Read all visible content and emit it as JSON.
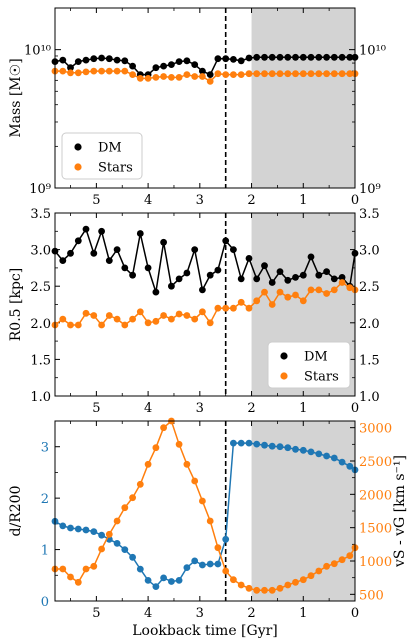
{
  "colors": {
    "dm": "#000000",
    "stars": "#ff7f0e",
    "blue": "#1f77b4",
    "orange": "#ff7f0e",
    "shade": "#d3d3d3"
  },
  "chart_data": [
    {
      "type": "line",
      "panel": "top",
      "ylabel": "Mass [M☉]",
      "yscale": "log",
      "ylim": [
        1000000000,
        20000000000
      ],
      "xlim": [
        5.8,
        0
      ],
      "yticks_left": [
        "10¹⁰",
        "10⁹"
      ],
      "yticks_right": [
        "10¹⁰",
        "10⁹"
      ],
      "xticks": [
        "5",
        "4",
        "3",
        "2",
        "1",
        "0"
      ],
      "vline_x": 2.5,
      "shaded_range": [
        2.0,
        0
      ],
      "legend": {
        "position": "lower-left",
        "entries": [
          "DM",
          "Stars"
        ]
      },
      "x": [
        5.8,
        5.65,
        5.5,
        5.35,
        5.2,
        5.05,
        4.9,
        4.75,
        4.6,
        4.45,
        4.3,
        4.15,
        4.0,
        3.85,
        3.7,
        3.55,
        3.4,
        3.25,
        3.1,
        2.95,
        2.8,
        2.65,
        2.5,
        2.35,
        2.2,
        2.05,
        1.9,
        1.75,
        1.6,
        1.45,
        1.3,
        1.15,
        1.0,
        0.85,
        0.7,
        0.55,
        0.4,
        0.25,
        0.1,
        0.0
      ],
      "series": [
        {
          "name": "DM",
          "values": [
            8.2,
            8.4,
            7.4,
            8.2,
            8.4,
            8.6,
            8.7,
            8.6,
            8.4,
            8.3,
            7.6,
            6.6,
            6.6,
            7.4,
            7.6,
            7.8,
            8.2,
            8.3,
            7.8,
            7.0,
            6.6,
            8.6,
            8.6,
            8.5,
            8.3,
            8.7,
            8.8,
            8.8,
            8.8,
            8.8,
            8.8,
            8.8,
            8.8,
            8.8,
            8.8,
            8.8,
            8.8,
            8.8,
            8.8,
            8.8
          ]
        },
        {
          "name": "Stars",
          "values": [
            7.0,
            7.0,
            6.8,
            6.8,
            6.9,
            7.0,
            7.0,
            7.0,
            7.0,
            7.0,
            6.6,
            6.2,
            6.2,
            6.3,
            6.4,
            6.3,
            6.3,
            6.6,
            6.4,
            6.4,
            5.9,
            6.7,
            6.6,
            6.6,
            6.6,
            6.7,
            6.7,
            6.7,
            6.7,
            6.7,
            6.7,
            6.7,
            6.7,
            6.7,
            6.7,
            6.7,
            6.7,
            6.7,
            6.7,
            6.7
          ]
        }
      ]
    },
    {
      "type": "line",
      "panel": "middle",
      "ylabel": "R0.5 [kpc]",
      "ylim": [
        1.0,
        3.5
      ],
      "xlim": [
        5.8,
        0
      ],
      "yticks": [
        "1.0",
        "1.5",
        "2.0",
        "2.5",
        "3.0",
        "3.5"
      ],
      "xticks": [
        "5",
        "4",
        "3",
        "2",
        "1",
        "0"
      ],
      "vline_x": 2.5,
      "shaded_range": [
        2.0,
        0
      ],
      "legend": {
        "position": "lower-right",
        "entries": [
          "DM",
          "Stars"
        ]
      },
      "x": [
        5.8,
        5.65,
        5.5,
        5.35,
        5.2,
        5.05,
        4.9,
        4.75,
        4.6,
        4.45,
        4.3,
        4.15,
        4.0,
        3.85,
        3.7,
        3.55,
        3.4,
        3.25,
        3.1,
        2.95,
        2.8,
        2.65,
        2.5,
        2.35,
        2.2,
        2.05,
        1.9,
        1.75,
        1.6,
        1.45,
        1.3,
        1.15,
        1.0,
        0.85,
        0.7,
        0.55,
        0.4,
        0.25,
        0.1,
        0.0
      ],
      "series": [
        {
          "name": "DM",
          "values": [
            2.98,
            2.85,
            2.95,
            3.12,
            3.28,
            2.95,
            3.25,
            2.85,
            3.0,
            2.75,
            2.65,
            3.22,
            2.75,
            2.42,
            3.1,
            2.5,
            2.6,
            2.68,
            3.0,
            2.45,
            2.65,
            2.72,
            3.12,
            3.0,
            2.6,
            2.88,
            2.6,
            2.78,
            2.55,
            2.7,
            2.58,
            2.62,
            2.65,
            2.9,
            2.65,
            2.7,
            2.6,
            2.62,
            2.5,
            2.95
          ]
        },
        {
          "name": "Stars",
          "values": [
            1.97,
            2.05,
            1.97,
            1.97,
            2.13,
            2.1,
            1.97,
            2.1,
            2.05,
            1.97,
            2.05,
            2.15,
            2.0,
            2.02,
            2.1,
            2.05,
            2.12,
            2.1,
            2.05,
            2.15,
            2.0,
            2.2,
            2.2,
            2.2,
            2.28,
            2.2,
            2.3,
            2.42,
            2.25,
            2.42,
            2.35,
            2.38,
            2.3,
            2.45,
            2.45,
            2.4,
            2.45,
            2.55,
            2.48,
            2.45
          ]
        }
      ]
    },
    {
      "type": "line",
      "panel": "bottom",
      "xlabel": "Lookback time [Gyr]",
      "ylabel_left": "d/R200",
      "ylabel_right": "vS - vG [km s⁻¹]",
      "ylim_left": [
        0,
        3.5
      ],
      "ylim_right": [
        400,
        3100
      ],
      "xlim": [
        5.8,
        0
      ],
      "yticks_left": [
        "0",
        "1",
        "2",
        "3"
      ],
      "yticks_right": [
        "500",
        "1000",
        "1500",
        "2000",
        "2500",
        "3000"
      ],
      "xticks": [
        "5",
        "4",
        "3",
        "2",
        "1",
        "0"
      ],
      "vline_x": 2.5,
      "shaded_range": [
        2.0,
        0
      ],
      "x": [
        5.8,
        5.65,
        5.5,
        5.35,
        5.2,
        5.05,
        4.9,
        4.75,
        4.6,
        4.45,
        4.3,
        4.15,
        4.0,
        3.85,
        3.7,
        3.55,
        3.4,
        3.25,
        3.1,
        2.95,
        2.8,
        2.65,
        2.5,
        2.35,
        2.2,
        2.05,
        1.9,
        1.75,
        1.6,
        1.45,
        1.3,
        1.15,
        1.0,
        0.85,
        0.7,
        0.55,
        0.4,
        0.25,
        0.1,
        0.0
      ],
      "series": [
        {
          "name": "d/R200",
          "axis": "left",
          "values": [
            1.55,
            1.46,
            1.42,
            1.4,
            1.38,
            1.35,
            1.28,
            1.2,
            1.12,
            1.0,
            0.85,
            0.62,
            0.4,
            0.28,
            0.45,
            0.38,
            0.4,
            0.65,
            0.78,
            0.7,
            0.72,
            0.72,
            1.2,
            3.07,
            3.07,
            3.07,
            3.05,
            3.03,
            3.01,
            3.0,
            2.98,
            2.95,
            2.93,
            2.9,
            2.86,
            2.82,
            2.78,
            2.7,
            2.62,
            2.55
          ]
        },
        {
          "name": "vS - vG",
          "axis": "right",
          "values": [
            880,
            880,
            760,
            680,
            880,
            920,
            1180,
            1400,
            1600,
            1800,
            1950,
            2150,
            2450,
            2700,
            3000,
            3100,
            2750,
            2450,
            2200,
            1900,
            1600,
            1200,
            850,
            720,
            640,
            590,
            560,
            560,
            560,
            590,
            640,
            680,
            720,
            780,
            850,
            920,
            960,
            1020,
            1080,
            1200
          ]
        }
      ]
    }
  ]
}
